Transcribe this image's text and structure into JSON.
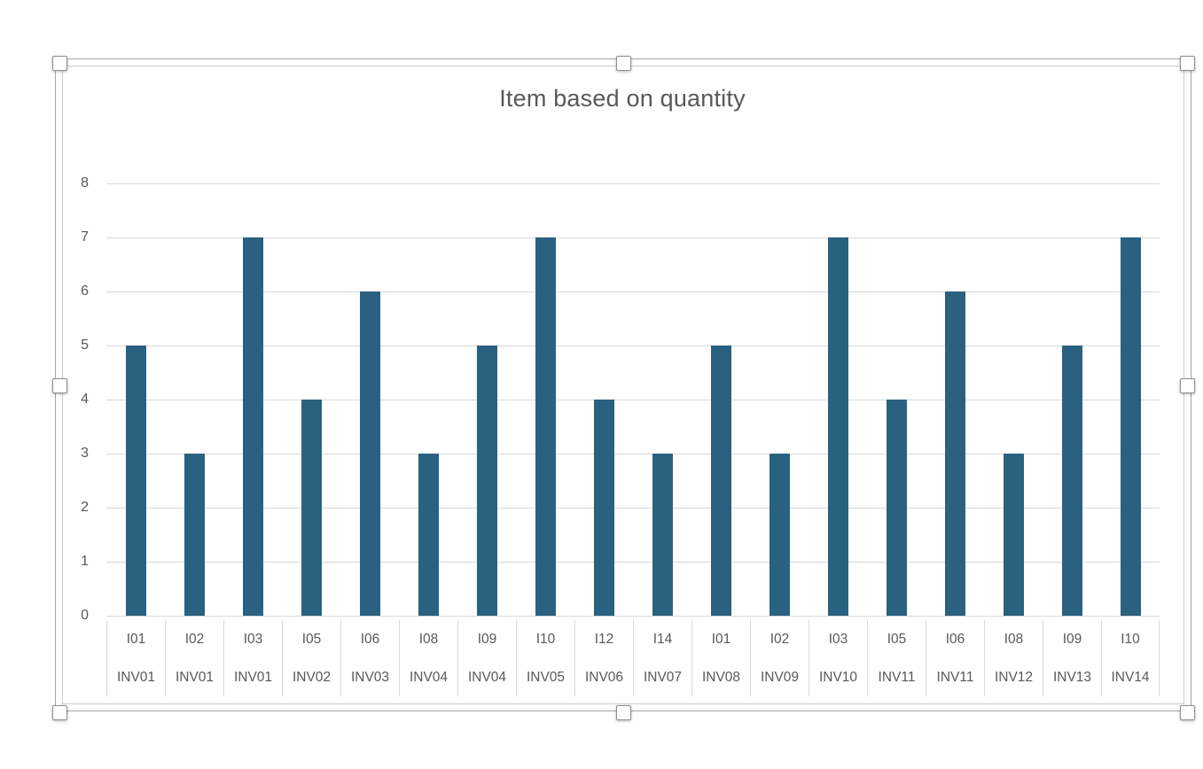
{
  "chart_data": {
    "type": "bar",
    "title": "Item based on quantity",
    "legend": "none",
    "grid": true,
    "ylim": [
      0,
      8
    ],
    "yticks": [
      0,
      1,
      2,
      3,
      4,
      5,
      6,
      7,
      8
    ],
    "xlabel": "",
    "ylabel": "",
    "categories": [
      {
        "item": "I01",
        "group": "INV01"
      },
      {
        "item": "I02",
        "group": "INV01"
      },
      {
        "item": "I03",
        "group": "INV01"
      },
      {
        "item": "I05",
        "group": "INV02"
      },
      {
        "item": "I06",
        "group": "INV03"
      },
      {
        "item": "I08",
        "group": "INV04"
      },
      {
        "item": "I09",
        "group": "INV04"
      },
      {
        "item": "I10",
        "group": "INV05"
      },
      {
        "item": "I12",
        "group": "INV06"
      },
      {
        "item": "I14",
        "group": "INV07"
      },
      {
        "item": "I01",
        "group": "INV08"
      },
      {
        "item": "I02",
        "group": "INV09"
      },
      {
        "item": "I03",
        "group": "INV10"
      },
      {
        "item": "I05",
        "group": "INV11"
      },
      {
        "item": "I06",
        "group": "INV11"
      },
      {
        "item": "I08",
        "group": "INV12"
      },
      {
        "item": "I09",
        "group": "INV13"
      },
      {
        "item": "I10",
        "group": "INV14"
      }
    ],
    "values": [
      5,
      3,
      7,
      4,
      6,
      3,
      5,
      7,
      4,
      3,
      5,
      3,
      7,
      4,
      6,
      3,
      5,
      7
    ]
  },
  "colors": {
    "bar": "#2b6180",
    "gridline": "#d9d9d9",
    "axis_text": "#595959",
    "title_text": "#595959",
    "selection_frame_outer": "#a6a6a6",
    "selection_frame_inner": "#cdcdcd"
  }
}
